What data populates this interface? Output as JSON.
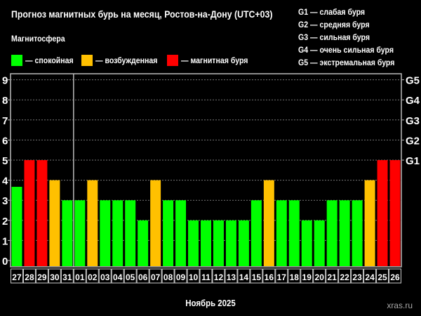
{
  "header": {
    "title": "Прогноз магнитных бурь на месяц, Ростов-на-Дону (UTC+03)",
    "subtitle": "Магнитосфера"
  },
  "legend": [
    {
      "label": "— спокойная",
      "color": "#00ff00"
    },
    {
      "label": "— возбужденная",
      "color": "#ffc000"
    },
    {
      "label": "— магнитная буря",
      "color": "#ff0000"
    }
  ],
  "g_legend": [
    "G1 — слабая буря",
    "G2 — средняя буря",
    "G3 — сильная буря",
    "G4 — очень сильная буря",
    "G5 — экстремальная буря"
  ],
  "watermark": "xras.ru",
  "chart_data": {
    "type": "bar",
    "title": "Прогноз магнитных бурь на месяц, Ростов-на-Дону (UTC+03)",
    "xlabel": "Ноябрь 2025",
    "ylabel": "",
    "ylim": [
      0,
      9
    ],
    "yticks": [
      "0",
      "1",
      "2",
      "3",
      "4",
      "5",
      "6",
      "7",
      "8",
      "9"
    ],
    "right_ticks": [
      {
        "value": 5,
        "label": "G1"
      },
      {
        "value": 6,
        "label": "G2"
      },
      {
        "value": 7,
        "label": "G3"
      },
      {
        "value": 8,
        "label": "G4"
      },
      {
        "value": 9,
        "label": "G5"
      }
    ],
    "categories": [
      "27",
      "28",
      "29",
      "30",
      "31",
      "01",
      "02",
      "03",
      "04",
      "05",
      "06",
      "07",
      "08",
      "09",
      "10",
      "11",
      "12",
      "13",
      "14",
      "15",
      "16",
      "17",
      "18",
      "19",
      "20",
      "21",
      "22",
      "23",
      "24",
      "25",
      "26"
    ],
    "values": [
      3.67,
      5,
      5,
      4,
      3,
      3,
      4,
      3,
      3,
      3,
      2,
      4,
      3,
      3,
      2,
      2,
      2,
      2,
      2,
      3,
      4,
      3,
      3,
      2,
      2,
      3,
      3,
      3,
      4,
      5,
      5
    ],
    "month_separator_after": "31",
    "grid": true,
    "colors": {
      "calm": "#00ff00",
      "active": "#ffc000",
      "storm": "#ff0000"
    }
  }
}
